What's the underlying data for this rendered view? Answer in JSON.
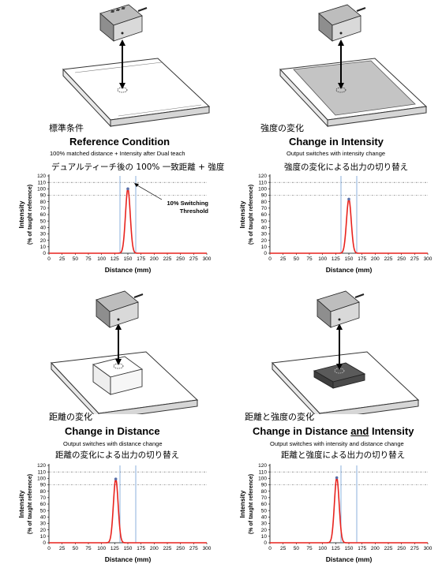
{
  "panels": [
    {
      "jp_title": "標準条件",
      "title": "Reference Condition",
      "subtitle": "100% matched distance + Intensity after Dual teach",
      "jp_subtitle": "デュアルティーチ後の 100% 一致距離 + 強度",
      "annotation_line1": "10% Switching",
      "annotation_line2": "Threshold"
    },
    {
      "jp_title": "強度の変化",
      "title": "Change in Intensity",
      "subtitle": "Output switches with intensity change",
      "jp_subtitle": "強度の変化による出力の切り替え"
    },
    {
      "jp_title": "距離の変化",
      "title": "Change in Distance",
      "subtitle": "Output switches with distance change",
      "jp_subtitle": "距離の変化による出力の切り替え"
    },
    {
      "jp_title": "距離と強度の変化",
      "title_a": "Change in Distance ",
      "title_b": "and",
      "title_c": " Intensity",
      "subtitle": "Output switches with intensity and distance change",
      "jp_subtitle": "距離と強度による出力の切り替え"
    }
  ],
  "chart_data": [
    {
      "type": "line",
      "xlabel": "Distance  (mm)",
      "ylabel_line1": "Intensity",
      "ylabel_line2": "(% of taught reference)",
      "xlim": [
        0,
        300
      ],
      "ylim": [
        0,
        120
      ],
      "x_ticks": [
        0,
        25,
        50,
        75,
        100,
        125,
        150,
        175,
        200,
        225,
        250,
        275,
        300
      ],
      "y_ticks": [
        0,
        10,
        20,
        30,
        40,
        50,
        60,
        70,
        80,
        90,
        100,
        110,
        120
      ],
      "threshold_upper": 110,
      "threshold_lower": 90,
      "distance_window": [
        135,
        165
      ],
      "peak": {
        "x": 150,
        "y": 100,
        "sigma": 4.5
      },
      "colors": {
        "curve": "#e8231e",
        "window": "#5a8fd0"
      }
    },
    {
      "type": "line",
      "xlabel": "Distance  (mm)",
      "ylabel_line1": "Intensity",
      "ylabel_line2": "(% of taught reference)",
      "xlim": [
        0,
        300
      ],
      "ylim": [
        0,
        120
      ],
      "x_ticks": [
        0,
        25,
        50,
        75,
        100,
        125,
        150,
        175,
        200,
        225,
        250,
        275,
        300
      ],
      "y_ticks": [
        0,
        10,
        20,
        30,
        40,
        50,
        60,
        70,
        80,
        90,
        100,
        110,
        120
      ],
      "threshold_upper": 110,
      "threshold_lower": 90,
      "distance_window": [
        135,
        165
      ],
      "peak": {
        "x": 150,
        "y": 84,
        "sigma": 4.5
      },
      "colors": {
        "curve": "#e8231e",
        "window": "#5a8fd0"
      }
    },
    {
      "type": "line",
      "xlabel": "Distance  (mm)",
      "ylabel_line1": "Intensity",
      "ylabel_line2": "(% of taught reference)",
      "xlim": [
        0,
        300
      ],
      "ylim": [
        0,
        120
      ],
      "x_ticks": [
        0,
        25,
        50,
        75,
        100,
        125,
        150,
        175,
        200,
        225,
        250,
        275,
        300
      ],
      "y_ticks": [
        0,
        10,
        20,
        30,
        40,
        50,
        60,
        70,
        80,
        90,
        100,
        110,
        120
      ],
      "threshold_upper": 110,
      "threshold_lower": 90,
      "distance_window": [
        135,
        165
      ],
      "peak": {
        "x": 127,
        "y": 99,
        "sigma": 4.5
      },
      "colors": {
        "curve": "#e8231e",
        "window": "#5a8fd0"
      }
    },
    {
      "type": "line",
      "xlabel": "Distance  (mm)",
      "ylabel_line1": "Intensity",
      "ylabel_line2": "(% of taught reference)",
      "xlim": [
        0,
        300
      ],
      "ylim": [
        0,
        120
      ],
      "x_ticks": [
        0,
        25,
        50,
        75,
        100,
        125,
        150,
        175,
        200,
        225,
        250,
        275,
        300
      ],
      "y_ticks": [
        0,
        10,
        20,
        30,
        40,
        50,
        60,
        70,
        80,
        90,
        100,
        110,
        120
      ],
      "threshold_upper": 110,
      "threshold_lower": 90,
      "distance_window": [
        135,
        165
      ],
      "peak": {
        "x": 127,
        "y": 101,
        "sigma": 4.5
      },
      "colors": {
        "curve": "#e8231e",
        "window": "#5a8fd0"
      }
    }
  ]
}
